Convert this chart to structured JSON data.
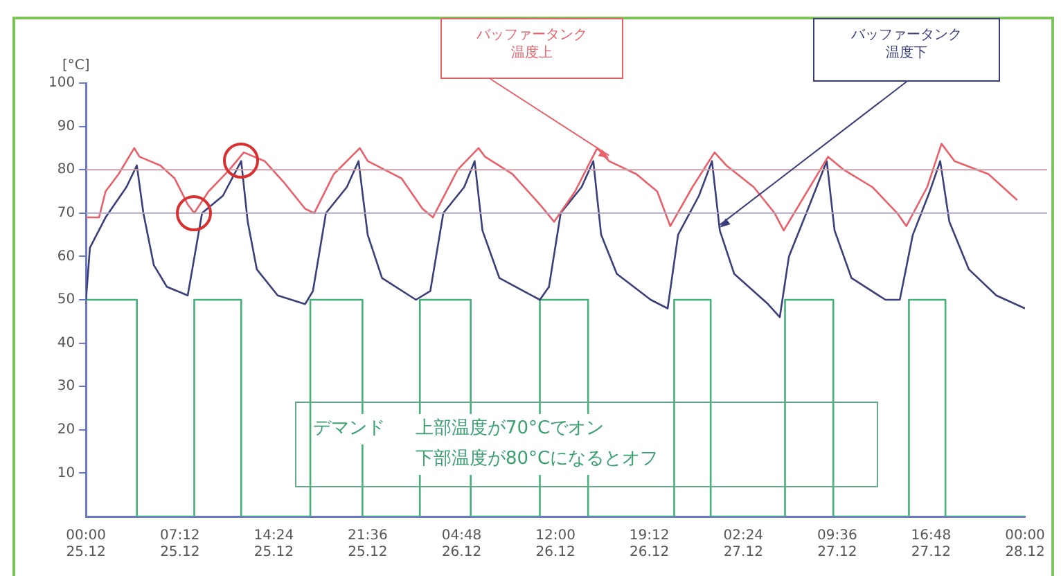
{
  "chart_data": {
    "type": "line",
    "ylabel": "[°C]",
    "xlim": [
      "--12-25T00:00",
      "--12-28T00:00"
    ],
    "ylim": [
      0,
      100
    ],
    "xticks": [
      {
        "value": "--12-25T00:00",
        "label": "00:00\n25.12"
      },
      {
        "value": "--12-25T07:12",
        "label": "07:12\n25.12"
      },
      {
        "value": "--12-25T14:24",
        "label": "14:24\n25.12"
      },
      {
        "value": "--12-25T21:36",
        "label": "21:36\n25.12"
      },
      {
        "value": "--12-26T04:48",
        "label": "04:48\n26.12"
      },
      {
        "value": "--12-26T12:00",
        "label": "12:00\n26.12"
      },
      {
        "value": "--12-26T19:12",
        "label": "19:12\n26.12"
      },
      {
        "value": "--12-27T02:24",
        "label": "02:24\n27.12"
      },
      {
        "value": "--12-27T09:36",
        "label": "09:36\n27.12"
      },
      {
        "value": "--12-27T16:48",
        "label": "16:48\n27.12"
      },
      {
        "value": "--12-28T00:00",
        "label": "00:00\n28.12"
      }
    ],
    "yticks": [
      10,
      20,
      30,
      40,
      50,
      60,
      70,
      80,
      90,
      100
    ],
    "grid": false,
    "legend": false,
    "marker": "none",
    "line_style": "solid",
    "ref_lines": [
      {
        "axis": "y",
        "value": 80,
        "color": "#c8a0a8"
      },
      {
        "axis": "y",
        "value": 70,
        "color": "#b0a8c0"
      }
    ],
    "annotations": [
      "デマンド",
      "上部温度が70°Cでオン",
      "下部温度が80°Cになるとオフ"
    ],
    "series": [
      {
        "name": "バッファータンク温度上",
        "color": "#e8606a",
        "x": [
          "--12-25T00:00",
          "--12-25T01:00",
          "--12-25T01:30",
          "--12-25T02:30",
          "--12-25T03:42",
          "--12-25T04:06",
          "--12-25T05:42",
          "--12-25T06:48",
          "--12-25T07:48",
          "--12-25T08:18",
          "--12-25T09:24",
          "--12-25T11:00",
          "--12-25T12:06",
          "--12-25T13:42",
          "--12-25T15:12",
          "--12-25T16:48",
          "--12-25T17:30",
          "--12-25T19:00",
          "--12-25T21:00",
          "--12-25T21:36",
          "--12-26T00:12",
          "--12-26T01:48",
          "--12-26T02:36",
          "--12-26T04:30",
          "--12-26T06:06",
          "--12-26T06:36",
          "--12-26T08:42",
          "--12-26T10:48",
          "--12-26T11:54",
          "--12-26T13:30",
          "--12-26T15:12",
          "--12-26T16:06",
          "--12-26T18:12",
          "--12-26T19:48",
          "--12-26T20:48",
          "--12-26T22:30",
          "--12-27T00:12",
          "--12-27T01:06",
          "--12-27T03:12",
          "--12-27T04:48",
          "--12-27T05:30",
          "--12-27T07:30",
          "--12-27T08:54",
          "--12-27T10:06",
          "--12-27T12:18",
          "--12-27T14:12",
          "--12-27T14:54",
          "--12-27T16:30",
          "--12-27T17:36",
          "--12-27T18:36",
          "--12-27T21:12",
          "--12-27T23:24"
        ],
        "values": [
          69,
          69,
          75,
          79,
          85,
          83,
          81,
          78,
          72,
          70,
          75,
          80,
          84,
          82,
          77,
          71,
          70,
          79,
          85,
          82,
          78,
          71,
          69,
          80,
          85,
          83,
          79,
          72,
          68,
          75,
          85,
          82,
          79,
          75,
          67,
          76,
          84,
          81,
          76,
          70,
          66,
          76,
          83,
          80,
          76,
          70,
          67,
          76,
          86,
          82,
          79,
          73
        ]
      },
      {
        "name": "バッファータンク温度下",
        "color": "#3a3f7a",
        "x": [
          "--12-25T00:00",
          "--12-25T00:18",
          "--12-25T01:30",
          "--12-25T03:06",
          "--12-25T03:54",
          "--12-25T04:24",
          "--12-25T05:12",
          "--12-25T06:12",
          "--12-25T07:48",
          "--12-25T08:54",
          "--12-25T10:30",
          "--12-25T11:54",
          "--12-25T12:24",
          "--12-25T13:06",
          "--12-25T14:42",
          "--12-25T16:48",
          "--12-25T17:24",
          "--12-25T18:24",
          "--12-25T20:00",
          "--12-25T20:54",
          "--12-25T21:36",
          "--12-25T22:42",
          "--12-26T01:18",
          "--12-26T02:24",
          "--12-26T03:24",
          "--12-26T05:00",
          "--12-26T05:48",
          "--12-26T06:24",
          "--12-26T07:42",
          "--12-26T10:48",
          "--12-26T11:30",
          "--12-26T12:24",
          "--12-26T14:00",
          "--12-26T14:54",
          "--12-26T15:30",
          "--12-26T16:42",
          "--12-26T19:18",
          "--12-26T20:36",
          "--12-26T21:24",
          "--12-26T23:00",
          "--12-27T00:00",
          "--12-27T00:36",
          "--12-27T01:42",
          "--12-27T04:18",
          "--12-27T05:12",
          "--12-27T05:54",
          "--12-27T07:30",
          "--12-27T08:48",
          "--12-27T09:24",
          "--12-27T10:42",
          "--12-27T13:18",
          "--12-27T14:24",
          "--12-27T15:24",
          "--12-27T16:42",
          "--12-27T17:30",
          "--12-27T18:12",
          "--12-27T19:42",
          "--12-27T21:48",
          "--12-28T00:00"
        ],
        "values": [
          50,
          62,
          69,
          76,
          81,
          70,
          58,
          53,
          51,
          70,
          74,
          82,
          68,
          57,
          51,
          49,
          52,
          70,
          76,
          82,
          65,
          55,
          50,
          52,
          70,
          76,
          82,
          66,
          55,
          50,
          53,
          70,
          76,
          82,
          65,
          56,
          50,
          48,
          65,
          74,
          82,
          66,
          56,
          49,
          46,
          60,
          72,
          82,
          66,
          55,
          50,
          50,
          65,
          75,
          82,
          68,
          57,
          51,
          48
        ]
      },
      {
        "type": "step",
        "color": "#45b07a",
        "x": [
          "--12-25T00:00",
          "--12-25T03:54",
          "--12-25T08:18",
          "--12-25T11:54",
          "--12-25T17:12",
          "--12-25T21:12",
          "--12-26T01:36",
          "--12-26T05:30",
          "--12-26T10:48",
          "--12-26T14:30",
          "--12-26T21:06",
          "--12-26T23:54",
          "--12-27T05:36",
          "--12-27T09:18",
          "--12-27T15:06",
          "--12-27T17:54",
          "--12-28T00:00"
        ],
        "values": [
          50,
          0,
          50,
          0,
          50,
          0,
          50,
          0,
          50,
          0,
          50,
          0,
          50,
          0,
          50,
          0,
          0
        ]
      }
    ]
  }
}
